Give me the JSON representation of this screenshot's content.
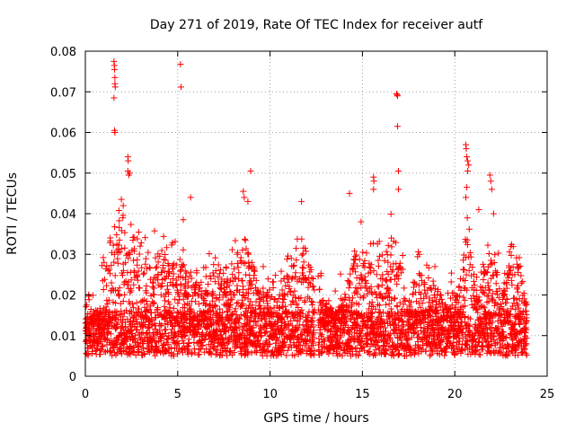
{
  "chart_data": {
    "type": "scatter",
    "title": "Day 271 of 2019, Rate Of TEC Index for receiver autf",
    "xlabel": "GPS time / hours",
    "ylabel": "ROTI / TECUs",
    "xlim": [
      0,
      25
    ],
    "ylim": [
      0,
      0.08
    ],
    "xticks": [
      0,
      5,
      10,
      15,
      20,
      25
    ],
    "yticks": [
      0,
      0.01,
      0.02,
      0.03,
      0.04,
      0.05,
      0.06,
      0.07,
      0.08
    ],
    "xtick_labels": [
      "0",
      "5",
      "10",
      "15",
      "20",
      "25"
    ],
    "ytick_labels": [
      "0",
      "0.01",
      "0.02",
      "0.03",
      "0.04",
      "0.05",
      "0.06",
      "0.07",
      "0.08"
    ],
    "grid": true,
    "marker": "plus",
    "color": "#ff0000",
    "time_range": [
      0,
      23.9
    ],
    "gaps": [
      [
        12.4,
        12.6
      ]
    ],
    "baseline_range": [
      0.005,
      0.016
    ],
    "activity_profile": [
      {
        "t": 0.0,
        "level": 0.013
      },
      {
        "t": 0.8,
        "level": 0.018
      },
      {
        "t": 1.0,
        "level": 0.03
      },
      {
        "t": 1.8,
        "level": 0.04
      },
      {
        "t": 2.2,
        "level": 0.03
      },
      {
        "t": 2.6,
        "level": 0.035
      },
      {
        "t": 3.4,
        "level": 0.032
      },
      {
        "t": 4.0,
        "level": 0.03
      },
      {
        "t": 4.7,
        "level": 0.028
      },
      {
        "t": 5.2,
        "level": 0.03
      },
      {
        "t": 5.8,
        "level": 0.024
      },
      {
        "t": 6.3,
        "level": 0.022
      },
      {
        "t": 7.0,
        "level": 0.026
      },
      {
        "t": 8.0,
        "level": 0.028
      },
      {
        "t": 8.7,
        "level": 0.035
      },
      {
        "t": 9.4,
        "level": 0.022
      },
      {
        "t": 10.2,
        "level": 0.02
      },
      {
        "t": 11.0,
        "level": 0.026
      },
      {
        "t": 11.8,
        "level": 0.035
      },
      {
        "t": 12.3,
        "level": 0.025
      },
      {
        "t": 12.7,
        "level": 0.02
      },
      {
        "t": 13.5,
        "level": 0.016
      },
      {
        "t": 14.3,
        "level": 0.025
      },
      {
        "t": 14.8,
        "level": 0.034
      },
      {
        "t": 15.3,
        "level": 0.03
      },
      {
        "t": 16.0,
        "level": 0.03
      },
      {
        "t": 16.8,
        "level": 0.036
      },
      {
        "t": 17.4,
        "level": 0.018
      },
      {
        "t": 18.0,
        "level": 0.026
      },
      {
        "t": 18.8,
        "level": 0.024
      },
      {
        "t": 19.5,
        "level": 0.018
      },
      {
        "t": 20.2,
        "level": 0.022
      },
      {
        "t": 20.7,
        "level": 0.04
      },
      {
        "t": 21.2,
        "level": 0.02
      },
      {
        "t": 21.9,
        "level": 0.03
      },
      {
        "t": 22.5,
        "level": 0.024
      },
      {
        "t": 23.3,
        "level": 0.03
      },
      {
        "t": 23.9,
        "level": 0.02
      }
    ],
    "spikes": [
      {
        "x": 1.55,
        "y": 0.0775
      },
      {
        "x": 1.57,
        "y": 0.0765
      },
      {
        "x": 1.58,
        "y": 0.0755
      },
      {
        "x": 1.6,
        "y": 0.0735
      },
      {
        "x": 1.6,
        "y": 0.072
      },
      {
        "x": 1.62,
        "y": 0.0712
      },
      {
        "x": 1.55,
        "y": 0.0685
      },
      {
        "x": 1.58,
        "y": 0.0605
      },
      {
        "x": 1.6,
        "y": 0.06
      },
      {
        "x": 1.95,
        "y": 0.0435
      },
      {
        "x": 2.05,
        "y": 0.042
      },
      {
        "x": 2.3,
        "y": 0.054
      },
      {
        "x": 2.32,
        "y": 0.053
      },
      {
        "x": 2.3,
        "y": 0.0505
      },
      {
        "x": 2.35,
        "y": 0.0495
      },
      {
        "x": 2.4,
        "y": 0.05
      },
      {
        "x": 5.15,
        "y": 0.0768
      },
      {
        "x": 5.18,
        "y": 0.0712
      },
      {
        "x": 5.3,
        "y": 0.0385
      },
      {
        "x": 5.7,
        "y": 0.044
      },
      {
        "x": 8.55,
        "y": 0.0455
      },
      {
        "x": 8.6,
        "y": 0.044
      },
      {
        "x": 8.8,
        "y": 0.043
      },
      {
        "x": 8.95,
        "y": 0.0505
      },
      {
        "x": 11.7,
        "y": 0.043
      },
      {
        "x": 14.3,
        "y": 0.045
      },
      {
        "x": 15.6,
        "y": 0.049
      },
      {
        "x": 15.62,
        "y": 0.048
      },
      {
        "x": 15.6,
        "y": 0.046
      },
      {
        "x": 16.85,
        "y": 0.0695
      },
      {
        "x": 16.88,
        "y": 0.0692
      },
      {
        "x": 16.9,
        "y": 0.069
      },
      {
        "x": 16.9,
        "y": 0.0615
      },
      {
        "x": 16.95,
        "y": 0.0505
      },
      {
        "x": 16.95,
        "y": 0.046
      },
      {
        "x": 20.6,
        "y": 0.057
      },
      {
        "x": 20.62,
        "y": 0.056
      },
      {
        "x": 20.65,
        "y": 0.054
      },
      {
        "x": 20.7,
        "y": 0.053
      },
      {
        "x": 20.75,
        "y": 0.052
      },
      {
        "x": 20.7,
        "y": 0.0505
      },
      {
        "x": 20.65,
        "y": 0.0465
      },
      {
        "x": 20.6,
        "y": 0.044
      },
      {
        "x": 21.9,
        "y": 0.0495
      },
      {
        "x": 21.95,
        "y": 0.048
      },
      {
        "x": 22.0,
        "y": 0.046
      },
      {
        "x": 21.3,
        "y": 0.041
      },
      {
        "x": 22.1,
        "y": 0.04
      }
    ]
  }
}
